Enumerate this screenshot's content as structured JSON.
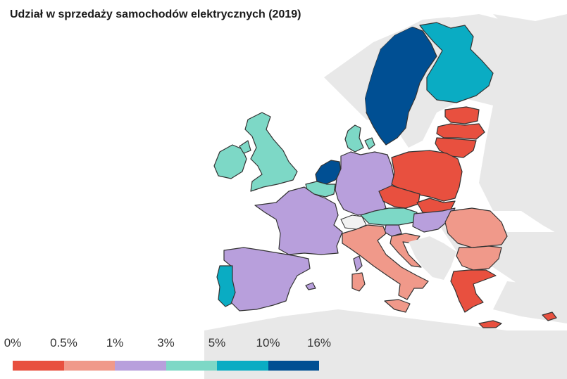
{
  "title": "Udział w sprzedaży samochodów elektrycznych (2019)",
  "legend": {
    "ticks": [
      "0%",
      "0.5%",
      "1%",
      "3%",
      "5%",
      "10%",
      "16%"
    ],
    "bins": [
      {
        "range": "0%–0.5%",
        "color": "#e8503f"
      },
      {
        "range": "0.5%–1%",
        "color": "#f0998a"
      },
      {
        "range": "1%–3%",
        "color": "#b89fdc"
      },
      {
        "range": "3%–5%",
        "color": "#7dd8c6"
      },
      {
        "range": "5%–10%",
        "color": "#0aacc3"
      },
      {
        "range": "10%–16%",
        "color": "#004f93"
      }
    ]
  },
  "colors": {
    "background_land": "#e8e8e8",
    "border": "#333333",
    "no_data": "#f2f2f2"
  },
  "countries": [
    {
      "name": "Sweden",
      "bin": 5
    },
    {
      "name": "Netherlands",
      "bin": 5
    },
    {
      "name": "Finland",
      "bin": 4
    },
    {
      "name": "Portugal",
      "bin": 4
    },
    {
      "name": "United Kingdom",
      "bin": 3
    },
    {
      "name": "Ireland",
      "bin": 3
    },
    {
      "name": "Denmark",
      "bin": 3
    },
    {
      "name": "Belgium",
      "bin": 3
    },
    {
      "name": "Austria",
      "bin": 3
    },
    {
      "name": "France",
      "bin": 2
    },
    {
      "name": "Germany",
      "bin": 2
    },
    {
      "name": "Spain",
      "bin": 2
    },
    {
      "name": "Hungary",
      "bin": 2
    },
    {
      "name": "Slovenia",
      "bin": 2
    },
    {
      "name": "Italy",
      "bin": 1
    },
    {
      "name": "Romania",
      "bin": 1
    },
    {
      "name": "Bulgaria",
      "bin": 1
    },
    {
      "name": "Croatia",
      "bin": 1
    },
    {
      "name": "Poland",
      "bin": 0
    },
    {
      "name": "Czechia",
      "bin": 0
    },
    {
      "name": "Slovakia",
      "bin": 0
    },
    {
      "name": "Lithuania",
      "bin": 0
    },
    {
      "name": "Latvia",
      "bin": 0
    },
    {
      "name": "Estonia",
      "bin": 0
    },
    {
      "name": "Greece",
      "bin": 0
    },
    {
      "name": "Cyprus",
      "bin": 0
    }
  ]
}
